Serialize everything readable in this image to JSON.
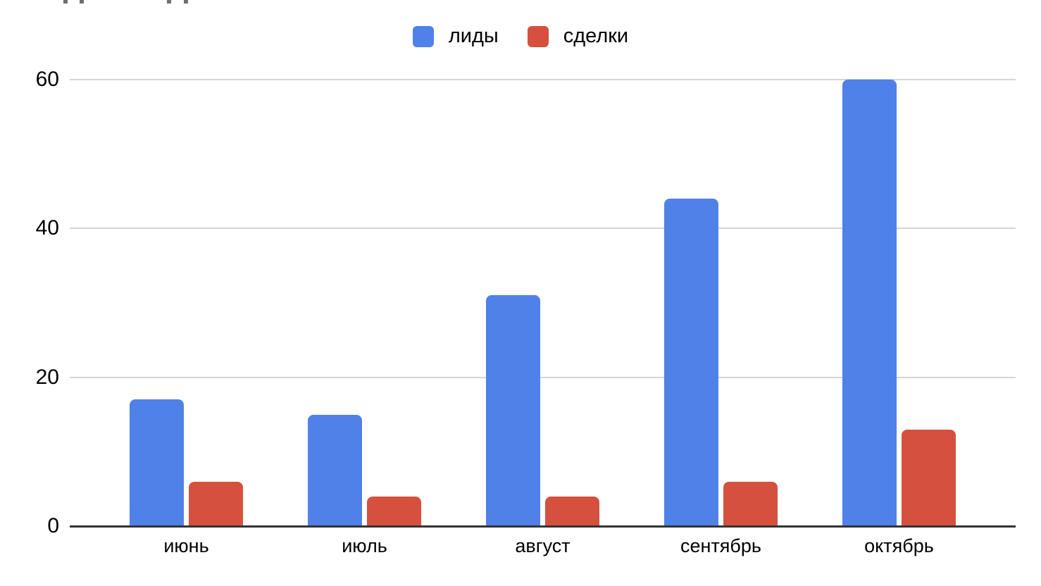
{
  "page": {
    "background": "#ffffff"
  },
  "cropped_text_fragments": {
    "color": "#6f6f6f",
    "positions_x": [
      90,
      113,
      237,
      261
    ]
  },
  "legend": {
    "items": [
      {
        "label": "лиды",
        "color": "#4f81e8"
      },
      {
        "label": "сделки",
        "color": "#d6503e"
      }
    ]
  },
  "chart_data": {
    "type": "bar",
    "title": "",
    "xlabel": "",
    "ylabel": "",
    "categories": [
      "июнь",
      "июль",
      "август",
      "сентябрь",
      "октябрь"
    ],
    "series": [
      {
        "name": "лиды",
        "color": "#4f81e8",
        "values": [
          17,
          15,
          31,
          44,
          60
        ]
      },
      {
        "name": "сделки",
        "color": "#d6503e",
        "values": [
          6,
          4,
          4,
          6,
          13
        ]
      }
    ],
    "ylim": [
      0,
      60
    ],
    "yticks": [
      0,
      20,
      40,
      60
    ],
    "grid": true,
    "legend_position": "top-center",
    "gridline_color": "#d5d5d5",
    "axis_line_color": "#333333",
    "tick_label_color": "#000000"
  }
}
